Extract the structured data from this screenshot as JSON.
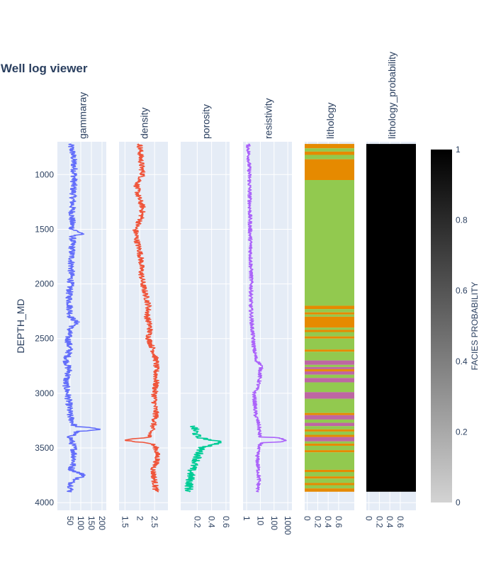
{
  "chart_data": {
    "type": "line",
    "title": "Well log viewer",
    "ylabel": "DEPTH_MD",
    "ylim": [
      4070,
      700
    ],
    "y_reversed": true,
    "yticks": [
      1000,
      1500,
      2000,
      2500,
      3000,
      3500,
      4000
    ],
    "depth_range": [
      720,
      3900
    ],
    "grid": true,
    "background": "#e5ecf6",
    "tracks": [
      {
        "name": "gammaray",
        "type": "line",
        "color": "#636efa",
        "xlim": [
          -10,
          220
        ],
        "xscale": "linear",
        "xticks": [
          50,
          100,
          150,
          200
        ],
        "profile": [
          [
            720,
            50
          ],
          [
            800,
            62
          ],
          [
            900,
            68
          ],
          [
            1000,
            70
          ],
          [
            1100,
            66
          ],
          [
            1200,
            64
          ],
          [
            1300,
            60
          ],
          [
            1400,
            58
          ],
          [
            1500,
            60
          ],
          [
            1540,
            110
          ],
          [
            1560,
            62
          ],
          [
            1700,
            58
          ],
          [
            1800,
            56
          ],
          [
            1900,
            55
          ],
          [
            2000,
            52
          ],
          [
            2100,
            45
          ],
          [
            2200,
            48
          ],
          [
            2300,
            52
          ],
          [
            2360,
            85
          ],
          [
            2400,
            50
          ],
          [
            2500,
            40
          ],
          [
            2600,
            48
          ],
          [
            2700,
            32
          ],
          [
            2800,
            45
          ],
          [
            2900,
            28
          ],
          [
            3000,
            38
          ],
          [
            3100,
            45
          ],
          [
            3200,
            48
          ],
          [
            3300,
            70
          ],
          [
            3330,
            205
          ],
          [
            3350,
            80
          ],
          [
            3400,
            50
          ],
          [
            3500,
            68
          ],
          [
            3600,
            70
          ],
          [
            3700,
            55
          ],
          [
            3750,
            120
          ],
          [
            3800,
            60
          ],
          [
            3900,
            50
          ]
        ],
        "noise": 16,
        "clip": [
          0,
          215
        ]
      },
      {
        "name": "density",
        "type": "line",
        "color": "#ef553b",
        "xlim": [
          1.3,
          2.95
        ],
        "xscale": "linear",
        "xticks": [
          1.5,
          2,
          2.5
        ],
        "profile": [
          [
            720,
            2.0
          ],
          [
            900,
            2.05
          ],
          [
            1000,
            2.1
          ],
          [
            1100,
            1.9
          ],
          [
            1200,
            1.95
          ],
          [
            1300,
            2.1
          ],
          [
            1400,
            2.05
          ],
          [
            1500,
            1.85
          ],
          [
            1600,
            1.9
          ],
          [
            1700,
            2.0
          ],
          [
            1800,
            2.05
          ],
          [
            1900,
            2.05
          ],
          [
            2000,
            2.1
          ],
          [
            2100,
            2.2
          ],
          [
            2200,
            2.3
          ],
          [
            2300,
            2.25
          ],
          [
            2400,
            2.35
          ],
          [
            2500,
            2.3
          ],
          [
            2600,
            2.45
          ],
          [
            2700,
            2.55
          ],
          [
            2800,
            2.55
          ],
          [
            2900,
            2.55
          ],
          [
            3000,
            2.5
          ],
          [
            3100,
            2.5
          ],
          [
            3200,
            2.55
          ],
          [
            3300,
            2.45
          ],
          [
            3400,
            2.3
          ],
          [
            3430,
            1.5
          ],
          [
            3460,
            2.4
          ],
          [
            3500,
            2.55
          ],
          [
            3600,
            2.6
          ],
          [
            3700,
            2.45
          ],
          [
            3800,
            2.5
          ],
          [
            3900,
            2.55
          ]
        ],
        "noise": 0.1,
        "clip": [
          1.4,
          2.85
        ]
      },
      {
        "name": "porosity",
        "type": "line",
        "color": "#00cc96",
        "xlim": [
          -0.03,
          0.65
        ],
        "xscale": "linear",
        "xticks": [
          0.2,
          0.4,
          0.6
        ],
        "profile": [
          [
            3300,
            0.15
          ],
          [
            3400,
            0.2
          ],
          [
            3450,
            0.55
          ],
          [
            3500,
            0.25
          ],
          [
            3600,
            0.2
          ],
          [
            3700,
            0.12
          ],
          [
            3800,
            0.1
          ],
          [
            3900,
            0.08
          ]
        ],
        "noise": 0.06,
        "clip": [
          0.0,
          0.62
        ]
      },
      {
        "name": "resistivity",
        "type": "line",
        "color": "#ab63fa",
        "xlim": [
          0.55,
          2000
        ],
        "xscale": "log",
        "xticks": [
          1,
          10,
          100,
          1000
        ],
        "profile": [
          [
            720,
            1.3
          ],
          [
            1000,
            1.6
          ],
          [
            1500,
            1.8
          ],
          [
            1800,
            2.0
          ],
          [
            2000,
            2.2
          ],
          [
            2200,
            2.0
          ],
          [
            2400,
            2.5
          ],
          [
            2600,
            3.5
          ],
          [
            2700,
            5
          ],
          [
            2750,
            12
          ],
          [
            2800,
            10
          ],
          [
            2900,
            8
          ],
          [
            3000,
            3.5
          ],
          [
            3100,
            4
          ],
          [
            3200,
            4.5
          ],
          [
            3300,
            8
          ],
          [
            3400,
            9
          ],
          [
            3430,
            700
          ],
          [
            3450,
            12
          ],
          [
            3500,
            7
          ],
          [
            3600,
            6
          ],
          [
            3700,
            7
          ],
          [
            3800,
            8
          ],
          [
            3900,
            6
          ]
        ],
        "noise": 0.28,
        "noise_mode": "log",
        "clip": [
          0.8,
          1500
        ]
      },
      {
        "name": "lithology",
        "type": "heatmap",
        "xlim": [
          -0.05,
          0.9
        ],
        "xticks": [
          0,
          0.2,
          0.4,
          0.6
        ],
        "colors": {
          "sandstone": "#e68a00",
          "shale": "#92c94f",
          "limestone": "#be66a3"
        },
        "bands": [
          [
            720,
            760,
            "sandstone"
          ],
          [
            760,
            790,
            "shale"
          ],
          [
            790,
            820,
            "sandstone"
          ],
          [
            820,
            860,
            "shale"
          ],
          [
            860,
            1050,
            "sandstone"
          ],
          [
            1050,
            2200,
            "shale"
          ],
          [
            2200,
            2230,
            "sandstone"
          ],
          [
            2230,
            2260,
            "shale"
          ],
          [
            2260,
            2280,
            "sandstone"
          ],
          [
            2280,
            2300,
            "shale"
          ],
          [
            2300,
            2400,
            "sandstone"
          ],
          [
            2400,
            2420,
            "shale"
          ],
          [
            2420,
            2440,
            "sandstone"
          ],
          [
            2440,
            2480,
            "shale"
          ],
          [
            2480,
            2500,
            "sandstone"
          ],
          [
            2500,
            2600,
            "shale"
          ],
          [
            2600,
            2620,
            "sandstone"
          ],
          [
            2620,
            2700,
            "shale"
          ],
          [
            2700,
            2740,
            "limestone"
          ],
          [
            2740,
            2760,
            "shale"
          ],
          [
            2760,
            2780,
            "limestone"
          ],
          [
            2780,
            2800,
            "sandstone"
          ],
          [
            2800,
            2830,
            "limestone"
          ],
          [
            2830,
            2860,
            "shale"
          ],
          [
            2860,
            2900,
            "limestone"
          ],
          [
            2900,
            2990,
            "shale"
          ],
          [
            2990,
            3050,
            "limestone"
          ],
          [
            3050,
            3180,
            "shale"
          ],
          [
            3180,
            3200,
            "sandstone"
          ],
          [
            3200,
            3240,
            "limestone"
          ],
          [
            3240,
            3270,
            "shale"
          ],
          [
            3270,
            3300,
            "limestone"
          ],
          [
            3300,
            3330,
            "shale"
          ],
          [
            3330,
            3350,
            "sandstone"
          ],
          [
            3350,
            3380,
            "shale"
          ],
          [
            3380,
            3400,
            "sandstone"
          ],
          [
            3400,
            3440,
            "limestone"
          ],
          [
            3440,
            3460,
            "shale"
          ],
          [
            3460,
            3480,
            "sandstone"
          ],
          [
            3480,
            3520,
            "shale"
          ],
          [
            3520,
            3540,
            "sandstone"
          ],
          [
            3540,
            3700,
            "shale"
          ],
          [
            3700,
            3720,
            "sandstone"
          ],
          [
            3720,
            3760,
            "shale"
          ],
          [
            3760,
            3780,
            "sandstone"
          ],
          [
            3780,
            3820,
            "shale"
          ],
          [
            3820,
            3840,
            "sandstone"
          ],
          [
            3840,
            3870,
            "shale"
          ],
          [
            3870,
            3900,
            "sandstone"
          ]
        ]
      },
      {
        "name": "lithology_probability",
        "type": "heatmap",
        "xlim": [
          -0.05,
          0.9
        ],
        "xticks": [
          0,
          0.2,
          0.4,
          0.6
        ],
        "value": 1,
        "bands": [
          [
            720,
            3900,
            1
          ]
        ]
      }
    ],
    "colorbar": {
      "title": "FACIES PROBABILITY",
      "range": [
        0,
        1
      ],
      "ticks": [
        0,
        0.2,
        0.4,
        0.6,
        0.8,
        1
      ],
      "colors": [
        "#d3d3d3",
        "#000000"
      ]
    }
  }
}
